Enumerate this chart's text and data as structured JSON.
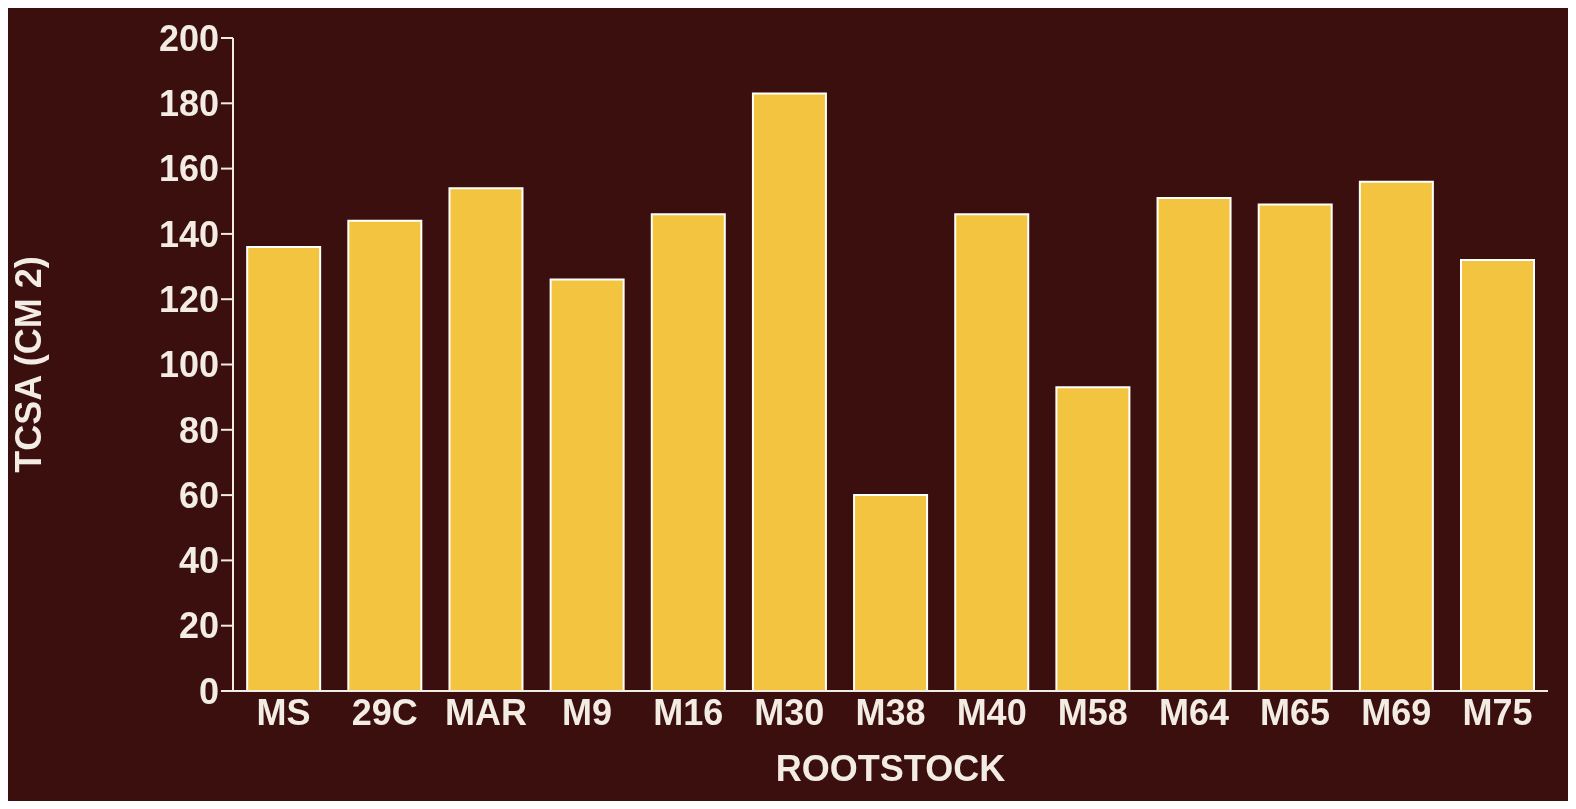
{
  "chart_data": {
    "type": "bar",
    "xlabel": "ROOTSTOCK",
    "ylabel": "TCSA (CM 2)",
    "categories": [
      "MS",
      "29C",
      "MAR",
      "M9",
      "M16",
      "M30",
      "M38",
      "M40",
      "M58",
      "M64",
      "M65",
      "M69",
      "M75"
    ],
    "values": [
      136,
      144,
      154,
      126,
      146,
      183,
      60,
      146,
      93,
      151,
      149,
      156,
      132
    ],
    "color": "#f2c43f",
    "ylim": [
      0,
      200
    ],
    "yticks": [
      0,
      20,
      40,
      60,
      80,
      100,
      120,
      140,
      160,
      180,
      200
    ],
    "grid": false,
    "legend": false
  }
}
